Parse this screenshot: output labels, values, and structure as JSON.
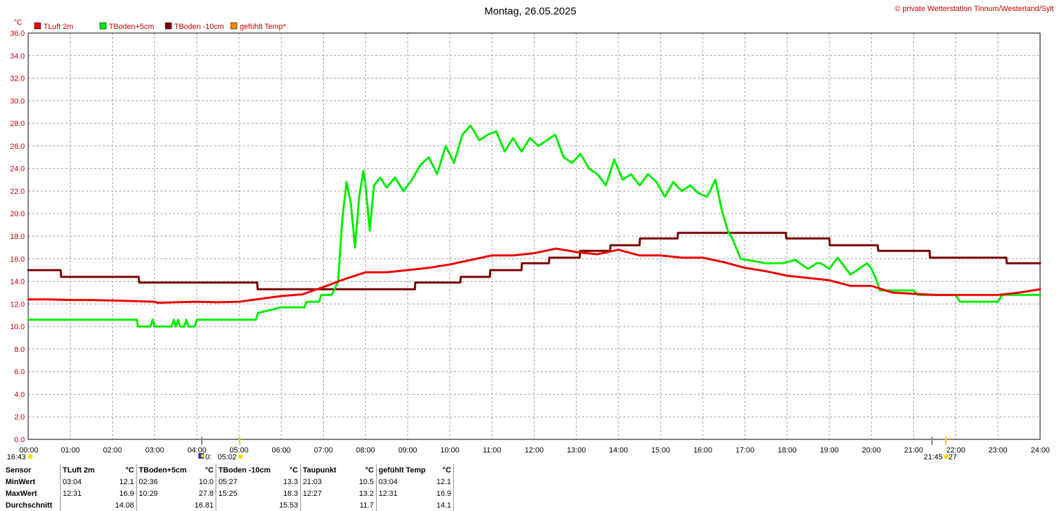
{
  "header": {
    "title": "Montag, 26.05.2025",
    "copyright": "© private Wetterstation Tinnum/Westerland/Sylt"
  },
  "colors": {
    "tluft": "#ee0000",
    "tboden5": "#00ee00",
    "tboden10": "#7a0000",
    "gefuehlt": "#ff8800",
    "axis_text": "#cc0000",
    "grid": "#a0a0a0"
  },
  "legend": [
    {
      "label": "TLuft 2m",
      "color": "#ee0000"
    },
    {
      "label": "TBoden+5cm",
      "color": "#00ee00"
    },
    {
      "label": "TBoden -10cm",
      "color": "#7a0000"
    },
    {
      "label": "gefühlt Temp*",
      "color": "#ff8800"
    }
  ],
  "events": {
    "sunrise_left": "16:43",
    "sunrise": "05:02",
    "moon_fragment": "0:",
    "sunset": "21:45",
    "sunset_fragment": "27"
  },
  "chart_data": {
    "type": "line",
    "title": "Montag, 26.05.2025",
    "ylabel": "°C",
    "ylim": [
      0,
      36
    ],
    "y_ticks": [
      "0.0",
      "2.0",
      "4.0",
      "6.0",
      "8.0",
      "10.0",
      "12.0",
      "14.0",
      "16.0",
      "18.0",
      "20.0",
      "22.0",
      "24.0",
      "26.0",
      "28.0",
      "30.0",
      "32.0",
      "34.0",
      "36.0"
    ],
    "xlim": [
      0,
      24
    ],
    "x_ticks": [
      "00:00",
      "01:00",
      "02:00",
      "03:00",
      "04:00",
      "05:00",
      "06:00",
      "07:00",
      "08:00",
      "09:00",
      "10:00",
      "11:00",
      "12:00",
      "13:00",
      "14:00",
      "15:00",
      "16:00",
      "17:00",
      "18:00",
      "19:00",
      "20:00",
      "21:00",
      "22:00",
      "23:00",
      "24:00"
    ],
    "grid": true,
    "legend_position": "top-left",
    "series": [
      {
        "name": "TLuft 2m",
        "x": [
          0,
          0.5,
          1,
          1.5,
          2,
          2.5,
          3,
          3.07,
          3.5,
          4,
          4.5,
          5,
          5.5,
          6,
          6.5,
          7,
          7.5,
          8,
          8.5,
          9,
          9.5,
          10,
          10.5,
          11,
          11.5,
          12,
          12.52,
          13,
          13.5,
          14,
          14.5,
          15,
          15.5,
          16,
          16.5,
          17,
          17.5,
          18,
          18.5,
          19,
          19.5,
          20,
          20.5,
          21,
          21.5,
          22,
          22.5,
          23,
          23.5,
          24
        ],
        "y": [
          12.4,
          12.4,
          12.35,
          12.35,
          12.3,
          12.25,
          12.2,
          12.1,
          12.15,
          12.2,
          12.15,
          12.2,
          12.45,
          12.7,
          12.85,
          13.5,
          14.2,
          14.8,
          14.8,
          15.0,
          15.2,
          15.5,
          15.9,
          16.3,
          16.3,
          16.5,
          16.9,
          16.6,
          16.4,
          16.8,
          16.3,
          16.3,
          16.1,
          16.1,
          15.7,
          15.2,
          14.9,
          14.5,
          14.3,
          14.1,
          13.6,
          13.6,
          13.0,
          12.9,
          12.8,
          12.8,
          12.8,
          12.8,
          13.0,
          13.3
        ]
      },
      {
        "name": "TBoden+5cm",
        "x": [
          0,
          2.58,
          2.6,
          2.9,
          2.95,
          3.0,
          3.05,
          3.1,
          3.4,
          3.45,
          3.5,
          3.55,
          3.6,
          3.7,
          3.75,
          3.8,
          3.9,
          3.95,
          4.0,
          5.4,
          5.45,
          6.0,
          6.55,
          6.6,
          6.9,
          6.95,
          7.2,
          7.35,
          7.45,
          7.55,
          7.65,
          7.75,
          7.85,
          7.95,
          8.0,
          8.1,
          8.2,
          8.35,
          8.5,
          8.7,
          8.9,
          9.1,
          9.3,
          9.5,
          9.7,
          9.9,
          10.1,
          10.3,
          10.49,
          10.7,
          10.9,
          11.1,
          11.3,
          11.5,
          11.7,
          11.9,
          12.1,
          12.3,
          12.5,
          12.7,
          12.9,
          13.1,
          13.3,
          13.5,
          13.7,
          13.9,
          14.1,
          14.3,
          14.5,
          14.7,
          14.9,
          15.1,
          15.3,
          15.5,
          15.7,
          15.9,
          16.1,
          16.3,
          16.45,
          16.6,
          16.7,
          16.9,
          17.5,
          17.9,
          18.2,
          18.3,
          18.5,
          18.7,
          18.8,
          19.0,
          19.2,
          19.3,
          19.5,
          19.7,
          19.9,
          20.0,
          20.1,
          20.2,
          20.5,
          20.8,
          21.0,
          21.1,
          21.5,
          22.0,
          22.1,
          22.5,
          23.0,
          23.1,
          23.5,
          24.0
        ],
        "y": [
          10.6,
          10.6,
          10.0,
          10.0,
          10.6,
          10.0,
          10.0,
          10.0,
          10.0,
          10.6,
          10.0,
          10.6,
          10.0,
          10.0,
          10.6,
          10.0,
          10.0,
          10.0,
          10.6,
          10.6,
          11.2,
          11.7,
          11.7,
          12.2,
          12.2,
          12.8,
          12.8,
          14.0,
          19.5,
          22.8,
          21.0,
          17.0,
          21.5,
          23.8,
          22.5,
          18.5,
          22.5,
          23.2,
          22.3,
          23.2,
          22.0,
          23.0,
          24.3,
          25.0,
          23.5,
          26.0,
          24.5,
          27.0,
          27.8,
          26.5,
          27.0,
          27.3,
          25.5,
          26.7,
          25.5,
          26.7,
          26.0,
          26.5,
          27.0,
          25.0,
          24.5,
          25.3,
          24.0,
          23.5,
          22.5,
          24.8,
          23.0,
          23.5,
          22.5,
          23.5,
          22.8,
          21.5,
          22.8,
          22.0,
          22.5,
          21.8,
          21.5,
          23.0,
          20.3,
          18.4,
          17.8,
          16.0,
          15.6,
          15.6,
          15.9,
          15.6,
          15.1,
          15.6,
          15.6,
          15.1,
          16.1,
          15.6,
          14.6,
          15.1,
          15.6,
          15.1,
          14.3,
          13.2,
          13.2,
          13.2,
          13.2,
          12.8,
          12.8,
          12.8,
          12.2,
          12.2,
          12.2,
          12.8,
          12.8,
          12.8
        ]
      },
      {
        "name": "TBoden -10cm",
        "x": [
          0,
          0.77,
          0.78,
          2.62,
          2.63,
          5.43,
          5.44,
          9.17,
          9.18,
          10.25,
          10.26,
          10.95,
          10.96,
          11.7,
          11.71,
          12.35,
          12.36,
          13.08,
          13.09,
          13.8,
          13.81,
          14.5,
          14.51,
          15.4,
          15.41,
          17.97,
          17.98,
          19.0,
          19.01,
          20.15,
          20.16,
          21.38,
          21.39,
          23.2,
          23.21,
          24.0
        ],
        "y": [
          15.0,
          15.0,
          14.4,
          14.4,
          13.9,
          13.9,
          13.3,
          13.3,
          13.9,
          13.9,
          14.4,
          14.4,
          15.0,
          15.0,
          15.6,
          15.6,
          16.1,
          16.1,
          16.7,
          16.7,
          17.2,
          17.2,
          17.8,
          17.8,
          18.3,
          18.3,
          17.8,
          17.8,
          17.2,
          17.2,
          16.7,
          16.7,
          16.1,
          16.1,
          15.6,
          15.6
        ]
      }
    ]
  },
  "stats": {
    "headers": [
      "Sensor",
      "TLuft 2m",
      "°C",
      "TBoden+5cm",
      "°C",
      "TBoden -10cm",
      "°C",
      "Taupunkt",
      "°C",
      "gefühlt Temp",
      "°C"
    ],
    "rows": [
      {
        "label": "MinWert",
        "cells": [
          "03:04",
          "12.1",
          "02:36",
          "10.0",
          "05:27",
          "13.3",
          "21:03",
          "10.5",
          "03:04",
          "12.1"
        ]
      },
      {
        "label": "MaxWert",
        "cells": [
          "12:31",
          "16.9",
          "10:29",
          "27.8",
          "15:25",
          "18.3",
          "12:27",
          "13.2",
          "12:31",
          "16.9"
        ]
      },
      {
        "label": "Durchschnitt",
        "cells": [
          "",
          "14.08",
          "",
          "16.81",
          "",
          "15.53",
          "",
          "11.7",
          "",
          "14.1"
        ]
      }
    ]
  }
}
